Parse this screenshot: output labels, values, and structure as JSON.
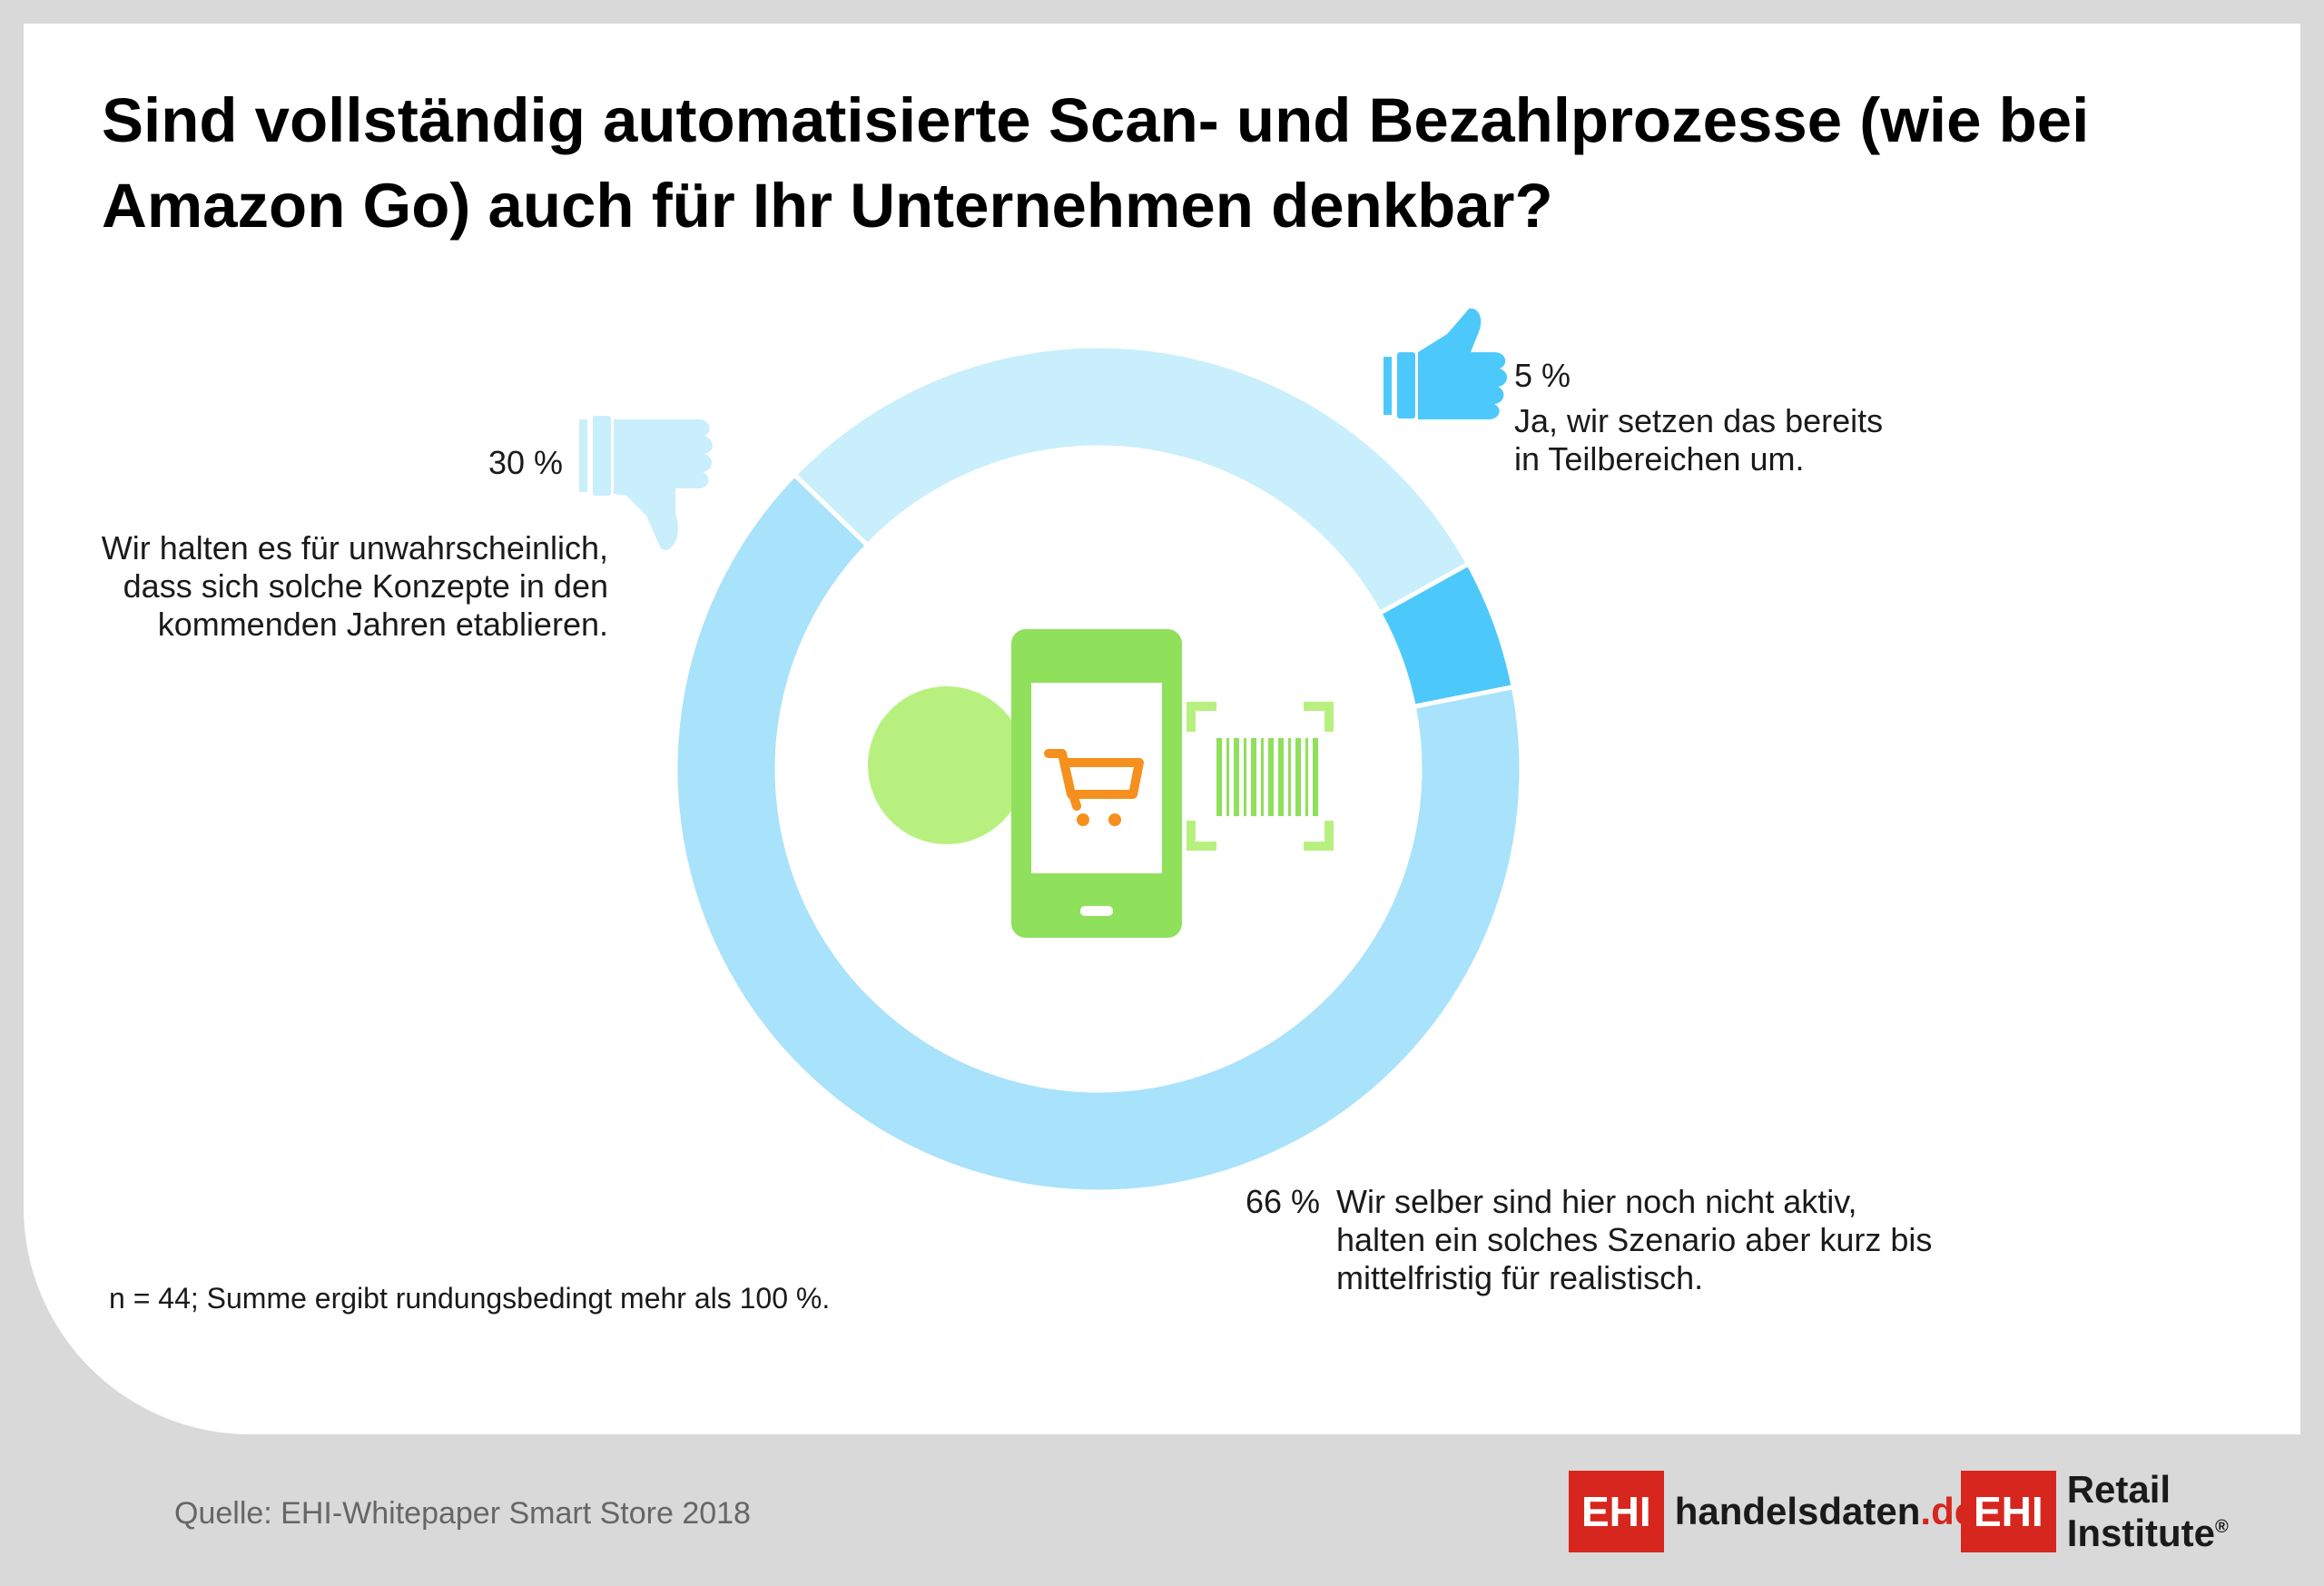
{
  "title": "Sind vollständig automatisierte Scan- und Bezahlprozesse (wie bei Amazon Go) auch für Ihr Unternehmen denkbar?",
  "chart_data": {
    "type": "pie",
    "donut": true,
    "slices": [
      {
        "label": "Ja, wir setzen das bereits in Teilbereichen um.",
        "value": 5,
        "value_label": "5 %",
        "color": "#4dc8fa"
      },
      {
        "label": "Wir selber sind hier noch nicht aktiv, halten ein solches Szenario aber kurz bis mittelfristig für realistisch.",
        "value": 66,
        "value_label": "66 %",
        "color": "#a8e2fb"
      },
      {
        "label": "Wir halten es für unwahrscheinlich, dass sich solche Konzepte in den kommenden Jahren etablieren.",
        "value": 30,
        "value_label": "30 %",
        "color": "#c9eefc"
      }
    ]
  },
  "labels": {
    "yes_pct": "5 %",
    "yes_line1": "Ja, wir setzen das bereits",
    "yes_line2": "in Teilbereichen um.",
    "no_pct": "30 %",
    "no_line1": "Wir halten es für unwahrscheinlich,",
    "no_line2": "dass sich solche Konzepte in den",
    "no_line3": "kommenden Jahren etablieren.",
    "maybe_pct": "66 %",
    "maybe_line1": "Wir selber sind hier noch nicht aktiv,",
    "maybe_line2": "halten ein solches Szenario aber kurz bis",
    "maybe_line3": "mittelfristig für realistisch."
  },
  "footnote": "n = 44; Summe ergibt rundungsbedingt mehr als 100 %.",
  "source": "Quelle: EHI-Whitepaper Smart Store 2018",
  "logos": {
    "logo1_box": "EHI",
    "logo1_name": "handelsdaten",
    "logo1_tld": ".de",
    "logo2_box": "EHI",
    "logo2_name": "Retail Institute",
    "logo2_mark": "®"
  },
  "colors": {
    "accent_red": "#d7261e",
    "icon_green": "#8fe05a",
    "circle_green": "#b8f07f",
    "cart_orange": "#f5901e",
    "thumb_up": "#4dc8fa",
    "thumb_down": "#c9eefc"
  },
  "icons": {
    "thumbs_up": "thumbs-up-icon",
    "thumbs_down": "thumbs-down-icon",
    "smartphone": "smartphone-icon",
    "cart": "shopping-cart-icon",
    "barcode": "barcode-scan-icon",
    "circle": "green-circle-icon"
  }
}
